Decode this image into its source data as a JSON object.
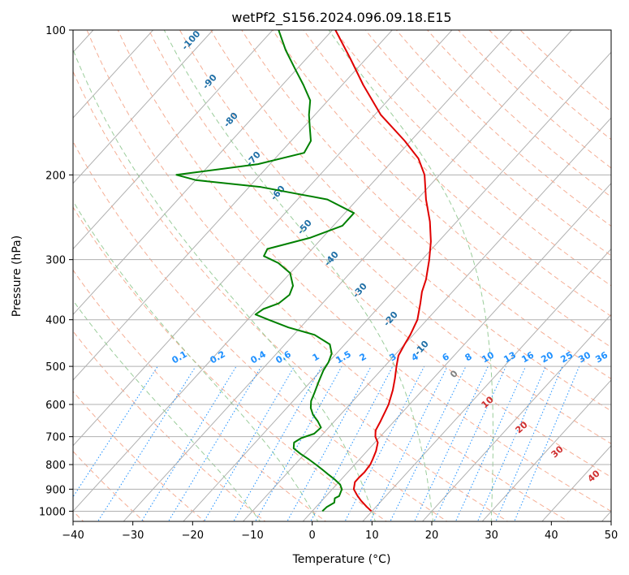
{
  "chart_data": {
    "type": "line",
    "subtype": "skew-t log-p diagram",
    "title": "wetPf2_S156.2024.096.09.18.E15",
    "xlabel": "Temperature (°C)",
    "ylabel": "Pressure (hPa)",
    "xlim": [
      -40,
      50
    ],
    "ylim": [
      1050,
      100
    ],
    "y_scale": "log",
    "x_ticks": [
      -40,
      -30,
      -20,
      -10,
      0,
      10,
      20,
      30,
      40,
      50
    ],
    "y_ticks": [
      100,
      200,
      300,
      400,
      500,
      600,
      700,
      800,
      900,
      1000
    ],
    "grid": true,
    "skew": true,
    "colors": {
      "temperature": "#e00000",
      "dewpoint": "#008000",
      "isotherm": "#b0b0b0",
      "dry_adiabat": "#f4a58a",
      "moist_adiabat": "#90c890",
      "mixing_ratio": "#1e90ff",
      "dry_label": "#d03030",
      "moist_label": "#1f6fa6",
      "zero_label": "#808080"
    },
    "series": [
      {
        "name": "",
        "role": "temperature",
        "points": [
          [
            1000,
            9.9
          ],
          [
            980,
            8.5
          ],
          [
            950,
            6.5
          ],
          [
            925,
            5.0
          ],
          [
            900,
            3.6
          ],
          [
            870,
            2.7
          ],
          [
            850,
            2.7
          ],
          [
            830,
            2.8
          ],
          [
            800,
            2.6
          ],
          [
            780,
            2.2
          ],
          [
            750,
            1.5
          ],
          [
            720,
            0.5
          ],
          [
            700,
            -0.8
          ],
          [
            680,
            -1.7
          ],
          [
            650,
            -2.3
          ],
          [
            620,
            -3.0
          ],
          [
            600,
            -3.5
          ],
          [
            560,
            -5.0
          ],
          [
            530,
            -6.4
          ],
          [
            500,
            -8.0
          ],
          [
            475,
            -9.3
          ],
          [
            450,
            -10.0
          ],
          [
            430,
            -10.5
          ],
          [
            400,
            -11.6
          ],
          [
            370,
            -13.6
          ],
          [
            350,
            -15.1
          ],
          [
            330,
            -16.3
          ],
          [
            300,
            -18.8
          ],
          [
            275,
            -21.3
          ],
          [
            250,
            -24.5
          ],
          [
            225,
            -28.5
          ],
          [
            200,
            -32.5
          ],
          [
            185,
            -36.0
          ],
          [
            170,
            -41.0
          ],
          [
            150,
            -49.0
          ],
          [
            130,
            -56.5
          ],
          [
            115,
            -62.5
          ],
          [
            100,
            -69.5
          ]
        ]
      },
      {
        "name": "",
        "role": "dewpoint",
        "points": [
          [
            1000,
            1.7
          ],
          [
            980,
            1.8
          ],
          [
            960,
            2.4
          ],
          [
            940,
            1.8
          ],
          [
            930,
            2.2
          ],
          [
            900,
            1.6
          ],
          [
            880,
            0.6
          ],
          [
            860,
            -1.0
          ],
          [
            840,
            -2.8
          ],
          [
            820,
            -4.6
          ],
          [
            800,
            -6.5
          ],
          [
            780,
            -8.5
          ],
          [
            760,
            -10.7
          ],
          [
            740,
            -12.7
          ],
          [
            720,
            -13.5
          ],
          [
            705,
            -13.0
          ],
          [
            690,
            -11.5
          ],
          [
            670,
            -11.3
          ],
          [
            650,
            -12.8
          ],
          [
            630,
            -14.6
          ],
          [
            610,
            -16.0
          ],
          [
            590,
            -17.0
          ],
          [
            570,
            -17.6
          ],
          [
            540,
            -18.6
          ],
          [
            510,
            -19.6
          ],
          [
            490,
            -20.0
          ],
          [
            470,
            -20.8
          ],
          [
            450,
            -22.5
          ],
          [
            430,
            -26.5
          ],
          [
            415,
            -32.0
          ],
          [
            400,
            -36.5
          ],
          [
            390,
            -39.5
          ],
          [
            380,
            -39.0
          ],
          [
            370,
            -37.3
          ],
          [
            355,
            -36.8
          ],
          [
            340,
            -37.6
          ],
          [
            320,
            -40.0
          ],
          [
            305,
            -43.5
          ],
          [
            295,
            -47.0
          ],
          [
            285,
            -47.5
          ],
          [
            270,
            -42.0
          ],
          [
            255,
            -38.5
          ],
          [
            240,
            -38.5
          ],
          [
            225,
            -45.0
          ],
          [
            212,
            -58.0
          ],
          [
            205,
            -70.0
          ],
          [
            200,
            -74.0
          ],
          [
            190,
            -62.0
          ],
          [
            180,
            -56.0
          ],
          [
            170,
            -56.7
          ],
          [
            160,
            -58.8
          ],
          [
            150,
            -61.0
          ],
          [
            140,
            -63.0
          ],
          [
            130,
            -66.5
          ],
          [
            120,
            -70.5
          ],
          [
            110,
            -74.8
          ],
          [
            100,
            -79.0
          ]
        ]
      }
    ],
    "isotherm_values": [
      -140,
      -130,
      -120,
      -110,
      -100,
      -90,
      -80,
      -70,
      -60,
      -50,
      -40,
      -30,
      -20,
      -10,
      0,
      10,
      20,
      30,
      40,
      50
    ],
    "dry_adiabat_values_c": [
      -40,
      -30,
      -20,
      -10,
      0,
      10,
      20,
      30,
      40,
      50,
      60,
      70,
      80,
      90,
      100,
      110,
      120,
      130,
      140,
      150,
      160,
      170,
      180
    ],
    "dry_adiabat_labels": [
      "10",
      "20",
      "30",
      "40"
    ],
    "moist_adiabat_values_c": [
      -10,
      0,
      10,
      20,
      30
    ],
    "moist_labels": [
      "-100",
      "-90",
      "-80",
      "-70",
      "-60",
      "-50",
      "-40",
      "-30",
      "-20",
      "-10",
      "0"
    ],
    "mixing_ratio_labels": [
      "0.1",
      "0.2",
      "0.4",
      "0.6",
      "1",
      "1.5",
      "2",
      "3",
      "4",
      "6",
      "8",
      "10",
      "13",
      "16",
      "20",
      "25",
      "30",
      "36"
    ]
  }
}
